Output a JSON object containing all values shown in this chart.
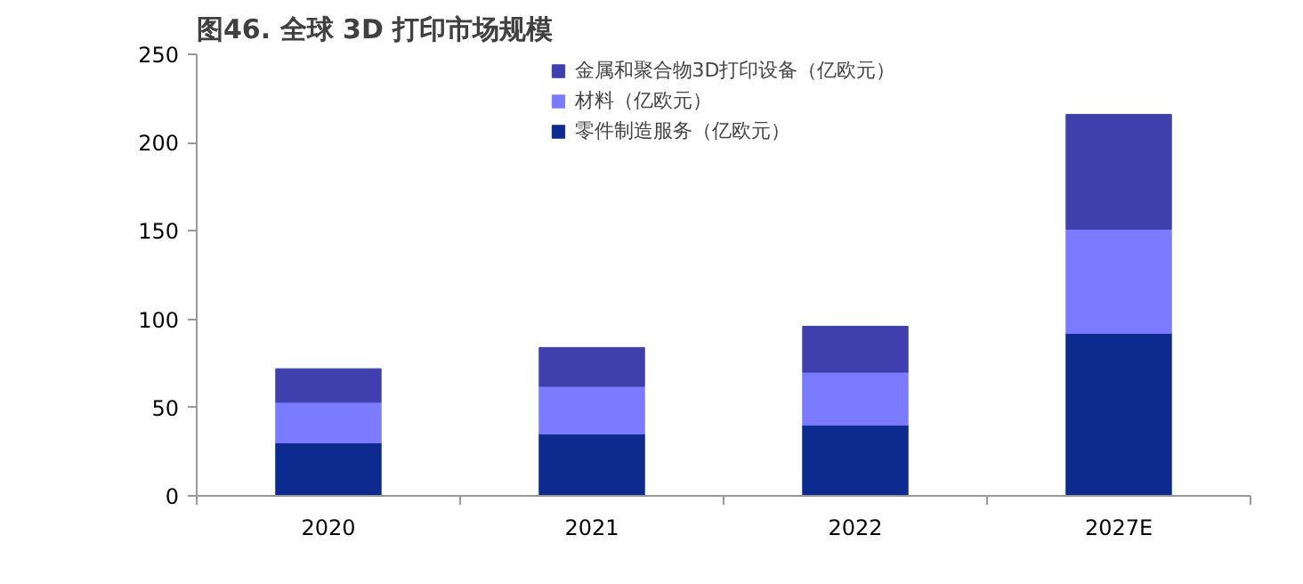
{
  "chart_data": {
    "type": "bar",
    "title": "图46. 全球 3D 打印市场规模",
    "stacked": true,
    "categories": [
      "2020",
      "2021",
      "2022",
      "2027E"
    ],
    "series": [
      {
        "name": "零件制造服务（亿欧元）",
        "color": "#0d2a8f",
        "values": [
          30,
          35,
          40,
          92
        ]
      },
      {
        "name": "材料（亿欧元）",
        "color": "#7b7bff",
        "values": [
          23,
          27,
          30,
          59
        ]
      },
      {
        "name": "金属和聚合物3D打印设备（亿欧元）",
        "color": "#3f3fae",
        "values": [
          19,
          22,
          26,
          65
        ]
      }
    ],
    "ylim": [
      0,
      250
    ],
    "yticks": [
      0,
      50,
      100,
      150,
      200,
      250
    ],
    "grid": false,
    "legend": "top"
  }
}
